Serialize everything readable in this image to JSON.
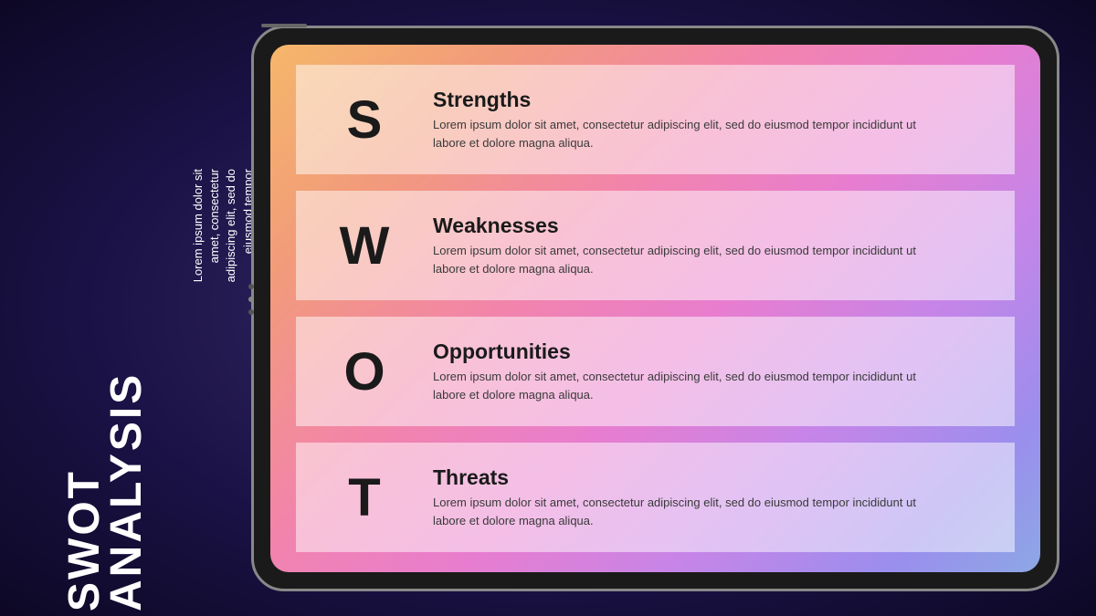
{
  "sidebar": {
    "title_line1": "SWOT",
    "title_line2": "ANALYSIS",
    "description": "Lorem ipsum dolor sit amet, consectetur adipiscing elit, sed do eiusmod tempor dolore magna aliqua."
  },
  "swot": {
    "items": [
      {
        "letter": "S",
        "title": "Strengths",
        "description": "Lorem ipsum dolor sit amet, consectetur adipiscing elit, sed do eiusmod tempor incididunt ut labore et dolore magna aliqua."
      },
      {
        "letter": "W",
        "title": "Weaknesses",
        "description": "Lorem ipsum dolor sit amet, consectetur adipiscing elit, sed do eiusmod tempor incididunt ut labore et dolore magna aliqua."
      },
      {
        "letter": "O",
        "title": "Opportunities",
        "description": "Lorem ipsum dolor sit amet, consectetur adipiscing elit, sed do eiusmod tempor incididunt ut labore et dolore magna aliqua."
      },
      {
        "letter": "T",
        "title": "Threats",
        "description": "Lorem ipsum dolor sit amet, consectetur adipiscing elit, sed do eiusmod tempor incididunt ut labore et dolore magna aliqua."
      }
    ]
  },
  "styling": {
    "background_gradient": [
      "#3a2d6e",
      "#1a1245",
      "#0d0825"
    ],
    "screen_gradient": [
      "#f5b76a",
      "#f29b7a",
      "#f284ab",
      "#e87dcf",
      "#c585e8",
      "#9b8eed",
      "#8ca8e5"
    ],
    "card_background": "rgba(255,255,255,0.5)",
    "text_color": "#1a1a1a",
    "sidebar_text_color": "#ffffff",
    "letter_fontsize": 58,
    "title_fontsize": 23,
    "description_fontsize": 13,
    "sidebar_title_fontsize": 48,
    "tablet_border_color": "#888888",
    "tablet_background": "#1a1a1a"
  }
}
